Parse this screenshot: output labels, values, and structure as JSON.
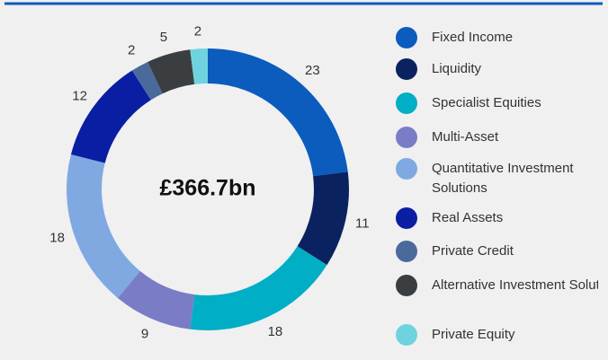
{
  "chart_data": {
    "type": "donut",
    "center_label": "£366.7bn",
    "categories": [
      "Fixed Income",
      "Liquidity",
      "Specialist Equities",
      "Multi-Asset",
      "Quantitative Investment Solutions",
      "Real Assets",
      "Private Credit",
      "Alternative Investment Solutions",
      "Private Equity"
    ],
    "values": [
      23,
      11,
      18,
      9,
      18,
      12,
      2,
      5,
      2
    ],
    "colors": [
      "#0b5cbd",
      "#0b2260",
      "#00aec6",
      "#7b7cc6",
      "#80a9e2",
      "#0a1ea3",
      "#4b6a9c",
      "#3b3e40",
      "#6fd3df"
    ]
  }
}
